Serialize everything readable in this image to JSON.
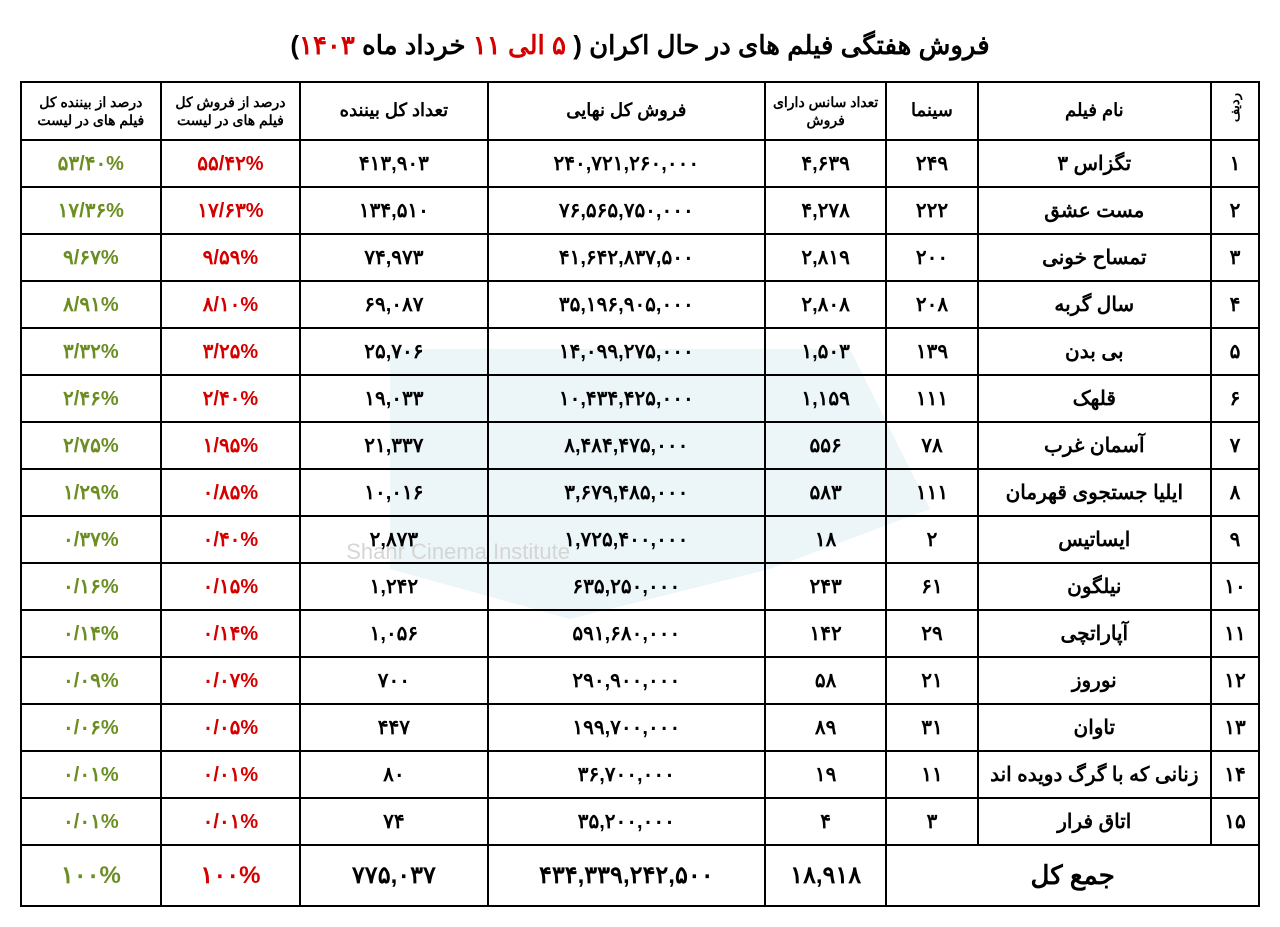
{
  "title_prefix": "فروش هفتگی",
  "title_main": " فیلم های در حال اکران ( ",
  "title_range": "۵ الی ۱۱",
  "title_month": " خرداد ماه ",
  "title_year": "۱۴۰۳",
  "title_suffix": ")",
  "headers": {
    "rank": "ردیف",
    "film": "نام فیلم",
    "cinema": "سینما",
    "sessions": "تعداد سانس دارای فروش",
    "sales": "فروش کل نهایی",
    "viewers": "تعداد کل بیننده",
    "pct_sales": "درصد از فروش کل فیلم های در لیست",
    "pct_viewers": "درصد از بیننده کل فیلم های در لیست"
  },
  "rows": [
    {
      "rank": "۱",
      "film": "تگزاس ۳",
      "cinema": "۲۴۹",
      "sessions": "۴,۶۳۹",
      "sales": "۲۴۰,۷۲۱,۲۶۰,۰۰۰",
      "viewers": "۴۱۳,۹۰۳",
      "pct_sales": "۵۵/۴۲%",
      "pct_viewers": "۵۳/۴۰%"
    },
    {
      "rank": "۲",
      "film": "مست عشق",
      "cinema": "۲۲۲",
      "sessions": "۴,۲۷۸",
      "sales": "۷۶,۵۶۵,۷۵۰,۰۰۰",
      "viewers": "۱۳۴,۵۱۰",
      "pct_sales": "۱۷/۶۳%",
      "pct_viewers": "۱۷/۳۶%"
    },
    {
      "rank": "۳",
      "film": "تمساح خونی",
      "cinema": "۲۰۰",
      "sessions": "۲,۸۱۹",
      "sales": "۴۱,۶۴۲,۸۳۷,۵۰۰",
      "viewers": "۷۴,۹۷۳",
      "pct_sales": "۹/۵۹%",
      "pct_viewers": "۹/۶۷%"
    },
    {
      "rank": "۴",
      "film": "سال گربه",
      "cinema": "۲۰۸",
      "sessions": "۲,۸۰۸",
      "sales": "۳۵,۱۹۶,۹۰۵,۰۰۰",
      "viewers": "۶۹,۰۸۷",
      "pct_sales": "۸/۱۰%",
      "pct_viewers": "۸/۹۱%"
    },
    {
      "rank": "۵",
      "film": "بی بدن",
      "cinema": "۱۳۹",
      "sessions": "۱,۵۰۳",
      "sales": "۱۴,۰۹۹,۲۷۵,۰۰۰",
      "viewers": "۲۵,۷۰۶",
      "pct_sales": "۳/۲۵%",
      "pct_viewers": "۳/۳۲%"
    },
    {
      "rank": "۶",
      "film": "قلهک",
      "cinema": "۱۱۱",
      "sessions": "۱,۱۵۹",
      "sales": "۱۰,۴۳۴,۴۲۵,۰۰۰",
      "viewers": "۱۹,۰۳۳",
      "pct_sales": "۲/۴۰%",
      "pct_viewers": "۲/۴۶%"
    },
    {
      "rank": "۷",
      "film": "آسمان غرب",
      "cinema": "۷۸",
      "sessions": "۵۵۶",
      "sales": "۸,۴۸۴,۴۷۵,۰۰۰",
      "viewers": "۲۱,۳۳۷",
      "pct_sales": "۱/۹۵%",
      "pct_viewers": "۲/۷۵%"
    },
    {
      "rank": "۸",
      "film": "ایلیا جستجوی قهرمان",
      "cinema": "۱۱۱",
      "sessions": "۵۸۳",
      "sales": "۳,۶۷۹,۴۸۵,۰۰۰",
      "viewers": "۱۰,۰۱۶",
      "pct_sales": "۰/۸۵%",
      "pct_viewers": "۱/۲۹%"
    },
    {
      "rank": "۹",
      "film": "ایساتیس",
      "cinema": "۲",
      "sessions": "۱۸",
      "sales": "۱,۷۲۵,۴۰۰,۰۰۰",
      "viewers": "۲,۸۷۳",
      "pct_sales": "۰/۴۰%",
      "pct_viewers": "۰/۳۷%"
    },
    {
      "rank": "۱۰",
      "film": "نیلگون",
      "cinema": "۶۱",
      "sessions": "۲۴۳",
      "sales": "۶۳۵,۲۵۰,۰۰۰",
      "viewers": "۱,۲۴۲",
      "pct_sales": "۰/۱۵%",
      "pct_viewers": "۰/۱۶%"
    },
    {
      "rank": "۱۱",
      "film": "آپاراتچی",
      "cinema": "۲۹",
      "sessions": "۱۴۲",
      "sales": "۵۹۱,۶۸۰,۰۰۰",
      "viewers": "۱,۰۵۶",
      "pct_sales": "۰/۱۴%",
      "pct_viewers": "۰/۱۴%"
    },
    {
      "rank": "۱۲",
      "film": "نوروز",
      "cinema": "۲۱",
      "sessions": "۵۸",
      "sales": "۲۹۰,۹۰۰,۰۰۰",
      "viewers": "۷۰۰",
      "pct_sales": "۰/۰۷%",
      "pct_viewers": "۰/۰۹%"
    },
    {
      "rank": "۱۳",
      "film": "تاوان",
      "cinema": "۳۱",
      "sessions": "۸۹",
      "sales": "۱۹۹,۷۰۰,۰۰۰",
      "viewers": "۴۴۷",
      "pct_sales": "۰/۰۵%",
      "pct_viewers": "۰/۰۶%"
    },
    {
      "rank": "۱۴",
      "film": "زنانی که با گرگ دویده اند",
      "cinema": "۱۱",
      "sessions": "۱۹",
      "sales": "۳۶,۷۰۰,۰۰۰",
      "viewers": "۸۰",
      "pct_sales": "۰/۰۱%",
      "pct_viewers": "۰/۰۱%"
    },
    {
      "rank": "۱۵",
      "film": "اتاق فرار",
      "cinema": "۳",
      "sessions": "۴",
      "sales": "۳۵,۲۰۰,۰۰۰",
      "viewers": "۷۴",
      "pct_sales": "۰/۰۱%",
      "pct_viewers": "۰/۰۱%"
    }
  ],
  "totals": {
    "label": "جمع کل",
    "sessions": "۱۸,۹۱۸",
    "sales": "۴۳۴,۳۳۹,۲۴۲,۵۰۰",
    "viewers": "۷۷۵,۰۳۷",
    "pct_sales": "۱۰۰%",
    "pct_viewers": "۱۰۰%"
  },
  "watermark_text": "Shahr Cinema Institute",
  "colors": {
    "red": "#d40000",
    "green": "#6b8e23",
    "border": "#000000",
    "watermark": "#a8d0e0"
  }
}
